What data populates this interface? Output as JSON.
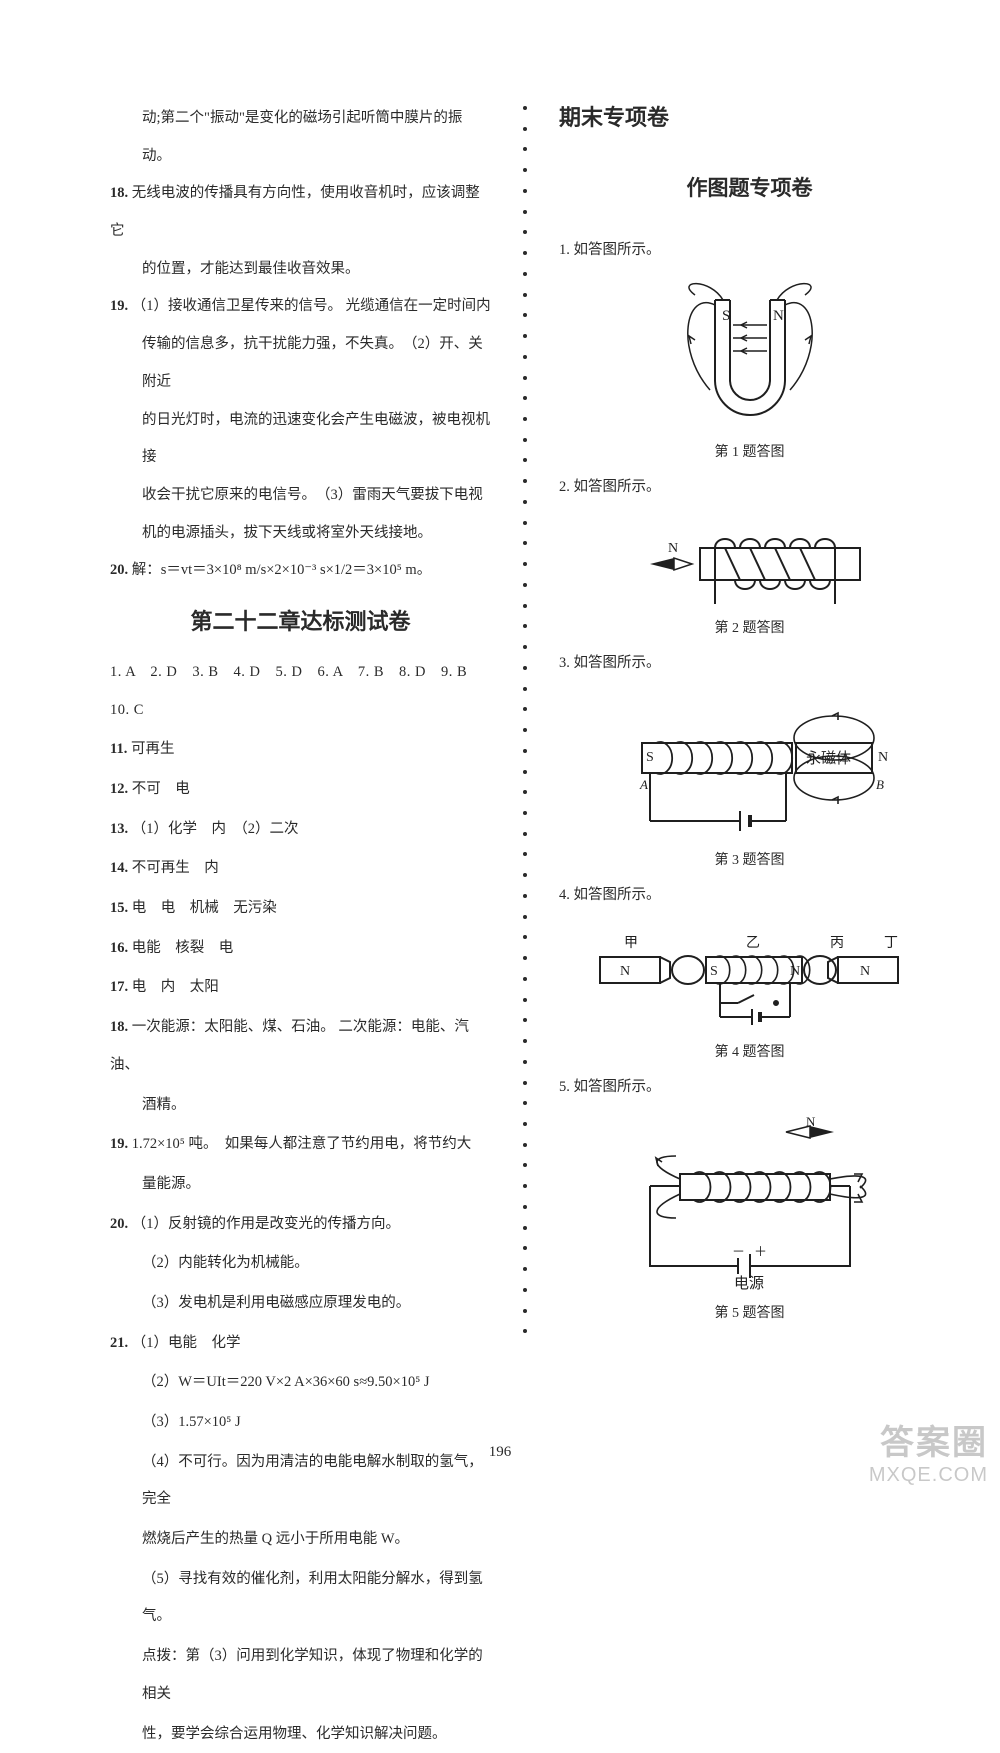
{
  "page_number": "196",
  "watermark": {
    "line1": "答案圈",
    "line2": "MXQE.COM"
  },
  "left": {
    "pre_lines": [
      "动;第二个\"振动\"是变化的磁场引起听筒中膜片的振动。",
      "无线电波的传播具有方向性，使用收音机时，应该调整它",
      "的位置，才能达到最佳收音效果。",
      "（1）接收通信卫星传来的信号。 光缆通信在一定时间内",
      "传输的信息多，抗干扰能力强，不失真。　（2）开、关附近",
      "的日光灯时，电流的迅速变化会产生电磁波，被电视机接",
      "收会干扰它原来的电信号。　（3）雷雨天气要拔下电视",
      "机的电源插头，拔下天线或将室外天线接地。",
      "解：s＝vt＝3×10⁸ m/s×2×10⁻³ s×1/2＝3×10⁵ m。"
    ],
    "q18_num": "18.",
    "q19_num": "19.",
    "q20_num": "20.",
    "chapter_title": "第二十二章达标测试卷",
    "mc": "1. A　2. D　3. B　4. D　5. D　6. A　7. B　8. D　9. B　10. C",
    "items": [
      {
        "n": "11.",
        "t": "可再生"
      },
      {
        "n": "12.",
        "t": "不可　电"
      },
      {
        "n": "13.",
        "t": "（1）化学　内　（2）二次"
      },
      {
        "n": "14.",
        "t": "不可再生　内"
      },
      {
        "n": "15.",
        "t": "电　电　机械　无污染"
      },
      {
        "n": "16.",
        "t": "电能　核裂　电"
      },
      {
        "n": "17.",
        "t": "电　内　太阳"
      },
      {
        "n": "18.",
        "t": "一次能源：太阳能、煤、石油。 二次能源：电能、汽油、"
      },
      {
        "n": "",
        "t": "酒精。"
      },
      {
        "n": "19.",
        "t": "1.72×10⁵ 吨。　如果每人都注意了节约用电，将节约大"
      },
      {
        "n": "",
        "t": "量能源。"
      },
      {
        "n": "20.",
        "t": "（1）反射镜的作用是改变光的传播方向。"
      },
      {
        "n": "",
        "t": "（2）内能转化为机械能。"
      },
      {
        "n": "",
        "t": "（3）发电机是利用电磁感应原理发电的。"
      },
      {
        "n": "21.",
        "t": "（1）电能　化学"
      },
      {
        "n": "",
        "t": "（2）W＝UIt＝220 V×2 A×36×60 s≈9.50×10⁵ J"
      },
      {
        "n": "",
        "t": "（3）1.57×10⁵ J"
      },
      {
        "n": "",
        "t": "（4）不可行。因为用清洁的电能电解水制取的氢气，完全"
      },
      {
        "n": "",
        "t": "燃烧后产生的热量 Q 远小于所用电能 W。"
      },
      {
        "n": "",
        "t": "（5）寻找有效的催化剂，利用太阳能分解水，得到氢气。"
      },
      {
        "n": "",
        "t": "点拨：第（3）问用到化学知识，体现了物理和化学的相关"
      },
      {
        "n": "",
        "t": "性，要学会综合运用物理、化学知识解决问题。"
      }
    ]
  },
  "right": {
    "section_title": "期末专项卷",
    "sub_title": "作图题专项卷",
    "figs": [
      {
        "prompt": "1. 如答图所示。",
        "caption": "第 1 题答图",
        "magnet": {
          "s_label": "S",
          "n_label": "N",
          "colors": {
            "stroke": "#1f1f1f",
            "bg": "#ffffff"
          }
        }
      },
      {
        "prompt": "2. 如答图所示。",
        "caption": "第 2 题答图",
        "compass_label": "N",
        "colors": {
          "stroke": "#1f1f1f"
        }
      },
      {
        "prompt": "3. 如答图所示。",
        "caption": "第 3 题答图",
        "labels": {
          "s": "S",
          "n": "N",
          "a": "A",
          "b": "B",
          "box": "永磁体"
        },
        "colors": {
          "stroke": "#1f1f1f"
        }
      },
      {
        "prompt": "4. 如答图所示。",
        "caption": "第 4 题答图",
        "labels": {
          "jia": "甲",
          "yi": "乙",
          "bing": "丙",
          "ding": "丁",
          "n": "N",
          "s": "S"
        },
        "colors": {
          "stroke": "#1f1f1f"
        }
      },
      {
        "prompt": "5. 如答图所示。",
        "caption": "第 5 题答图",
        "labels": {
          "n": "N",
          "source": "电源",
          "plus": "＋",
          "minus": "－"
        },
        "colors": {
          "stroke": "#1f1f1f"
        }
      }
    ]
  },
  "colors": {
    "text": "#2a2a2a",
    "bg": "#ffffff",
    "stroke": "#1f1f1f",
    "dot": "#2a2a2a"
  }
}
